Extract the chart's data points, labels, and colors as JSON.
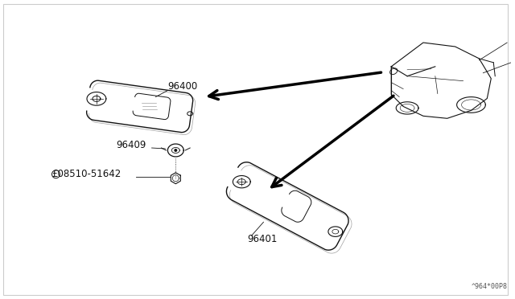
{
  "bg_color": "#ffffff",
  "line_color": "#111111",
  "fig_code": "^964*00P8",
  "visor_left_label": "96400",
  "clip_label": "96409",
  "bolt_label": "£08510-51642",
  "visor_right_label": "96401"
}
